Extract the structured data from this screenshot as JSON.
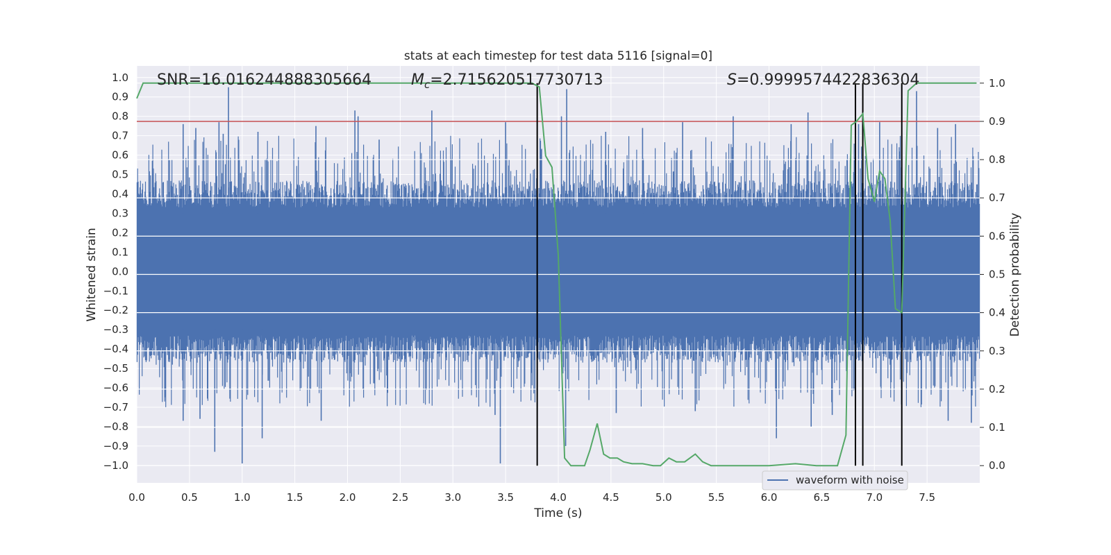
{
  "chart_data": {
    "type": "line",
    "title": "stats at each timestep for test data 5116 [signal=0]",
    "xlabel": "Time (s)",
    "ylabel_left": "Whitened strain",
    "ylabel_right": "Detection probability",
    "xlim": [
      0.0,
      8.0
    ],
    "ylim_left": [
      -1.09,
      1.06
    ],
    "ylim_right": [
      -0.045,
      1.045
    ],
    "x_ticks": [
      "0.0",
      "0.5",
      "1.0",
      "1.5",
      "2.0",
      "2.5",
      "3.0",
      "3.5",
      "4.0",
      "4.5",
      "5.0",
      "5.5",
      "6.0",
      "6.5",
      "7.0",
      "7.5"
    ],
    "y_ticks_left": [
      "1.0",
      "0.9",
      "0.8",
      "0.7",
      "0.6",
      "0.5",
      "0.4",
      "0.3",
      "0.2",
      "0.1",
      "0.0",
      "-0.1",
      "-0.2",
      "-0.3",
      "-0.4",
      "-0.5",
      "-0.6",
      "-0.7",
      "-0.8",
      "-0.9",
      "-1.0"
    ],
    "y_ticks_right": [
      "1.0",
      "0.9",
      "0.8",
      "0.7",
      "0.6",
      "0.5",
      "0.4",
      "0.3",
      "0.2",
      "0.1",
      "0.0"
    ],
    "grid": true,
    "legend": {
      "placement": "bottom-right",
      "entries": [
        "waveform with noise"
      ]
    },
    "annotations": {
      "snr": "SNR=16.016244888305664",
      "mc_symbol": "M",
      "mc_sub": "c",
      "mc_value": "=2.715620517730713",
      "s_symbol": "S",
      "s_value": "=0.9999574422836304"
    },
    "threshold": {
      "axis": "right",
      "value": 0.9,
      "color": "#c44e52"
    },
    "vertical_markers": [
      3.8,
      6.82,
      6.89,
      7.26
    ],
    "colors": {
      "waveform": "#4c72b0",
      "probability": "#55a868",
      "threshold": "#c44e52",
      "markers": "#000000",
      "background": "#eaeaf2",
      "grid": "#ffffff"
    },
    "series": [
      {
        "name": "waveform with noise",
        "axis": "left",
        "style": "dense noise, amplitude about ±0.45 with spikes up to ±1.0",
        "spikes": [
          [
            0.87,
            0.95
          ],
          [
            0.78,
            0.77
          ],
          [
            0.82,
            0.71
          ],
          [
            0.44,
            0.76
          ],
          [
            0.56,
            0.74
          ],
          [
            1.15,
            0.72
          ],
          [
            1.7,
            0.75
          ],
          [
            2.07,
            0.83
          ],
          [
            2.1,
            0.8
          ],
          [
            2.3,
            0.68
          ],
          [
            2.8,
            0.83
          ],
          [
            3.5,
            0.77
          ],
          [
            4.08,
            0.94
          ],
          [
            4.03,
            0.8
          ],
          [
            4.45,
            0.72
          ],
          [
            4.8,
            0.74
          ],
          [
            5.18,
            0.77
          ],
          [
            5.66,
            0.8
          ],
          [
            6.21,
            0.76
          ],
          [
            6.37,
            0.82
          ],
          [
            6.85,
            0.76
          ],
          [
            7.05,
            0.77
          ],
          [
            7.4,
            0.93
          ],
          [
            7.6,
            0.74
          ],
          [
            7.77,
            0.76
          ],
          [
            1.0,
            -0.99
          ],
          [
            0.74,
            -0.93
          ],
          [
            1.19,
            -0.86
          ],
          [
            3.45,
            -0.99
          ],
          [
            4.07,
            -0.9
          ],
          [
            6.07,
            -0.86
          ],
          [
            6.4,
            -0.8
          ],
          [
            0.44,
            -0.77
          ],
          [
            0.6,
            -0.76
          ],
          [
            1.75,
            -0.77
          ],
          [
            3.4,
            -0.74
          ],
          [
            4.55,
            -0.73
          ],
          [
            5.3,
            -0.72
          ],
          [
            6.6,
            -0.74
          ],
          [
            7.7,
            -0.77
          ],
          [
            7.92,
            -0.78
          ]
        ]
      },
      {
        "name": "detection probability",
        "axis": "right",
        "x": [
          0.0,
          0.06,
          0.2,
          1.0,
          2.0,
          3.0,
          3.6,
          3.75,
          3.82,
          3.88,
          3.94,
          4.0,
          4.06,
          4.12,
          4.2,
          4.25,
          4.3,
          4.37,
          4.43,
          4.49,
          4.56,
          4.62,
          4.7,
          4.8,
          4.9,
          4.97,
          5.05,
          5.12,
          5.2,
          5.3,
          5.37,
          5.45,
          5.55,
          5.7,
          6.0,
          6.25,
          6.45,
          6.65,
          6.73,
          6.78,
          6.83,
          6.89,
          6.94,
          7.0,
          7.05,
          7.1,
          7.15,
          7.2,
          7.26,
          7.32,
          7.4,
          7.5,
          7.6,
          7.8,
          7.97
        ],
        "y": [
          0.96,
          1.0,
          1.0,
          1.0,
          1.0,
          1.0,
          1.0,
          1.0,
          0.99,
          0.81,
          0.78,
          0.55,
          0.02,
          0.0,
          0.0,
          0.0,
          0.04,
          0.11,
          0.03,
          0.02,
          0.02,
          0.01,
          0.005,
          0.005,
          0.0,
          0.0,
          0.02,
          0.01,
          0.01,
          0.03,
          0.01,
          0.0,
          0.0,
          0.0,
          0.0,
          0.005,
          0.0,
          0.0,
          0.08,
          0.89,
          0.9,
          0.92,
          0.75,
          0.69,
          0.77,
          0.75,
          0.64,
          0.41,
          0.4,
          0.98,
          1.0,
          1.0,
          1.0,
          1.0,
          1.0
        ]
      }
    ]
  }
}
